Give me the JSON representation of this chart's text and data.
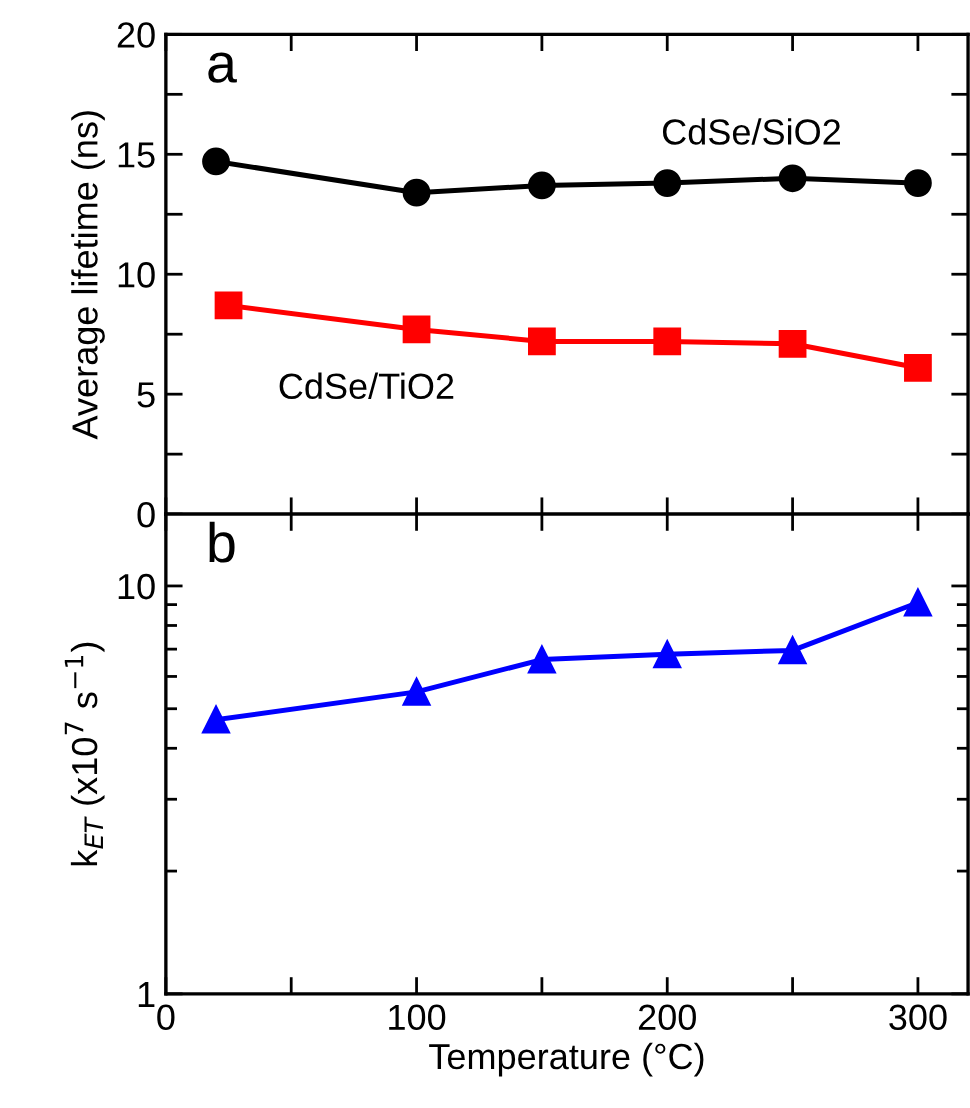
{
  "chart_data": [
    {
      "type": "line",
      "ylabel": "Average lifetime (ns)",
      "annotations": [
        "a"
      ],
      "x": [
        20,
        100,
        150,
        200,
        250,
        300
      ],
      "series": [
        {
          "name": "CdSe/SiO2",
          "color": "#000000",
          "marker": "circle",
          "values": [
            14.7,
            13.4,
            13.7,
            13.8,
            14.0,
            13.8
          ]
        },
        {
          "name": "CdSe/TiO2",
          "color": "#ff0000",
          "marker": "square",
          "x": [
            25,
            100,
            150,
            200,
            250,
            300
          ],
          "values": [
            8.7,
            7.7,
            7.2,
            7.2,
            7.1,
            6.1
          ]
        }
      ],
      "xlim": [
        0,
        320
      ],
      "xticks": [
        0,
        {
          "value": 50,
          "label": null
        },
        100,
        {
          "value": 150,
          "label": null
        },
        200,
        {
          "value": 250,
          "label": null
        },
        300
      ],
      "ylim": [
        0,
        20
      ],
      "yticks": [
        0,
        {
          "value": 2.5,
          "label": null
        },
        5,
        {
          "value": 7.5,
          "label": null
        },
        10,
        {
          "value": 12.5,
          "label": null
        },
        15,
        {
          "value": 17.5,
          "label": null
        },
        20
      ],
      "tick_labels": "y",
      "grid": false,
      "legend": false,
      "line_style": "solid"
    },
    {
      "type": "line",
      "xlabel": "Temperature (°C)",
      "ylabel": "k$_{ET}$ (x10$^{7}$ s$^{−1}$)",
      "annotations": [
        "b"
      ],
      "x": [
        20,
        100,
        150,
        200,
        250,
        300
      ],
      "series": [
        {
          "color": "#0000ff",
          "marker": "triangle",
          "values": [
            4.7,
            5.5,
            6.6,
            6.8,
            6.95,
            9.1
          ]
        }
      ],
      "xlim": [
        0,
        320
      ],
      "xticks": [
        0,
        {
          "value": 50,
          "label": null
        },
        100,
        {
          "value": 150,
          "label": null
        },
        200,
        {
          "value": 250,
          "label": null
        },
        300
      ],
      "ylim": [
        1,
        15
      ],
      "yticks": [
        1,
        10
      ],
      "log": "y",
      "grid": false,
      "legend": false,
      "line_style": "solid"
    }
  ]
}
